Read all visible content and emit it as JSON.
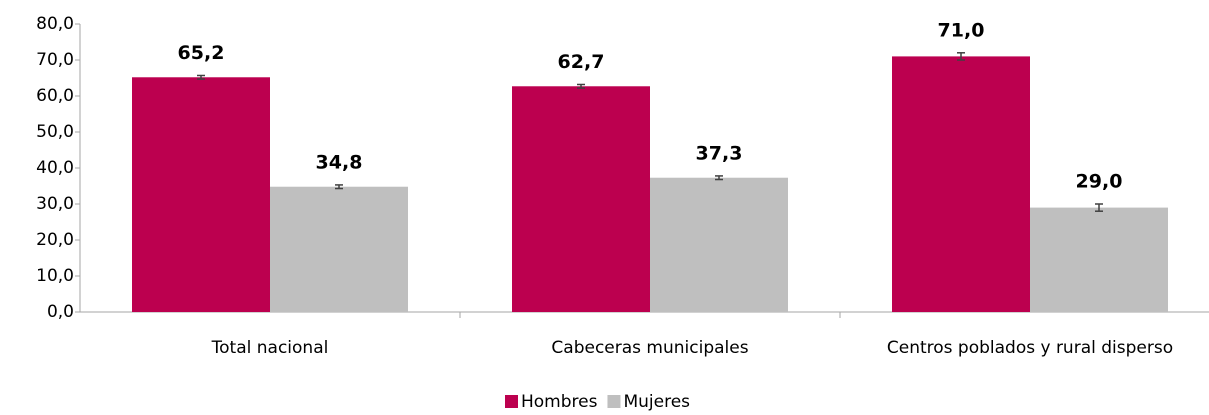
{
  "chart_data": {
    "type": "bar",
    "categories": [
      "Total nacional",
      "Cabeceras municipales",
      "Centros poblados y rural disperso"
    ],
    "series": [
      {
        "name": "Hombres",
        "color": "#bc004f",
        "values": [
          65.2,
          62.7,
          71.0
        ],
        "value_labels": [
          "65,2",
          "62,7",
          "71,0"
        ],
        "errors": [
          0.5,
          0.5,
          1.0
        ]
      },
      {
        "name": "Mujeres",
        "color": "#bfbfbf",
        "values": [
          34.8,
          37.3,
          29.0
        ],
        "value_labels": [
          "34,8",
          "37,3",
          "29,0"
        ],
        "errors": [
          0.5,
          0.5,
          1.0
        ]
      }
    ],
    "ylim": [
      0,
      80
    ],
    "yticks": [
      {
        "value": 0,
        "label": "0,0"
      },
      {
        "value": 10,
        "label": "10,0"
      },
      {
        "value": 20,
        "label": "20,0"
      },
      {
        "value": 30,
        "label": "30,0"
      },
      {
        "value": 40,
        "label": "40,0"
      },
      {
        "value": 50,
        "label": "50,0"
      },
      {
        "value": 60,
        "label": "60,0"
      },
      {
        "value": 70,
        "label": "70,0"
      },
      {
        "value": 80,
        "label": "80,0"
      }
    ],
    "legend": "bottom"
  }
}
